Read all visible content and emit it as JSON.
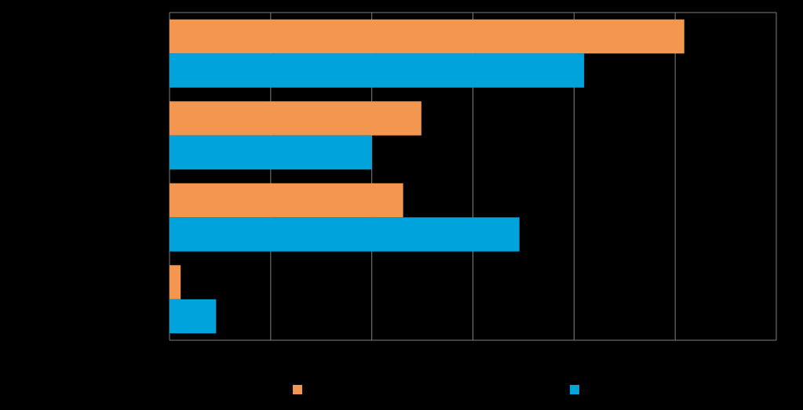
{
  "chart_data": {
    "type": "barh",
    "categories": [
      null,
      null,
      null,
      null
    ],
    "series": [
      {
        "color": "#f29650",
        "values": [
          5.09,
          2.49,
          2.31,
          0.11
        ]
      },
      {
        "color": "#00a3db",
        "values": [
          4.1,
          2.0,
          3.46,
          0.46
        ]
      }
    ],
    "xlim": [
      0,
      6
    ],
    "xticks": [
      0,
      1,
      2,
      3,
      4,
      5,
      6
    ],
    "grid": true
  }
}
